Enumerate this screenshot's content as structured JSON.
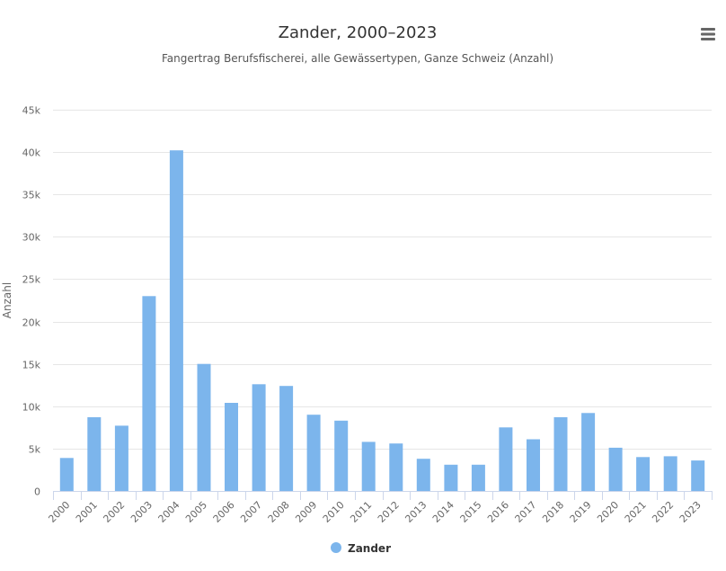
{
  "menu_icon": "hamburger-menu-icon",
  "chart_data": {
    "type": "bar",
    "title": "Zander, 2000–2023",
    "subtitle": "Fangertrag Berufsfischerei, alle Gewässertypen, Ganze Schweiz (Anzahl)",
    "ylabel": "Anzahl",
    "xlabel": "",
    "ylim": [
      0,
      45000
    ],
    "yticks": [
      0,
      5000,
      10000,
      15000,
      20000,
      25000,
      30000,
      35000,
      40000,
      45000
    ],
    "ytick_labels": [
      "0",
      "5k",
      "10k",
      "15k",
      "20k",
      "25k",
      "30k",
      "35k",
      "40k",
      "45k"
    ],
    "grid": true,
    "legend_position": "bottom-center",
    "categories": [
      "2000",
      "2001",
      "2002",
      "2003",
      "2004",
      "2005",
      "2006",
      "2007",
      "2008",
      "2009",
      "2010",
      "2011",
      "2012",
      "2013",
      "2014",
      "2015",
      "2016",
      "2017",
      "2018",
      "2019",
      "2020",
      "2021",
      "2022",
      "2023"
    ],
    "series": [
      {
        "name": "Zander",
        "color": "#7cb5ec",
        "values": [
          3900,
          8700,
          7700,
          23000,
          40200,
          15000,
          10400,
          12600,
          12400,
          9000,
          8300,
          5800,
          5600,
          3800,
          3100,
          3100,
          7500,
          6100,
          8700,
          9200,
          5100,
          4000,
          4100,
          3600
        ]
      }
    ]
  }
}
